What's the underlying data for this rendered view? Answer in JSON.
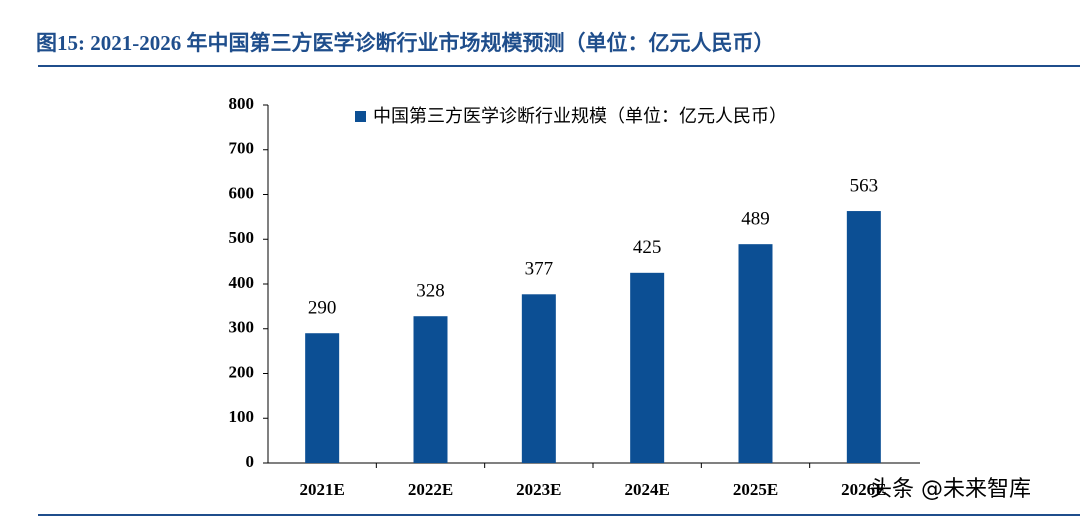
{
  "chart_data": {
    "type": "bar",
    "title": "图15: 2021-2026 年中国第三方医学诊断行业市场规模预测（单位：亿元人民币）",
    "categories": [
      "2021E",
      "2022E",
      "2023E",
      "2024E",
      "2025E",
      "2026E"
    ],
    "series": [
      {
        "name": "中国第三方医学诊断行业规模（单位：亿元人民币）",
        "color": "#0c4f94",
        "values": [
          290,
          328,
          377,
          425,
          489,
          563
        ]
      }
    ],
    "ylim": [
      0,
      800
    ],
    "yticks": [
      0,
      100,
      200,
      300,
      400,
      500,
      600,
      700,
      800
    ],
    "legend": "top",
    "grid": false
  },
  "watermark": "头条 @未来智库"
}
